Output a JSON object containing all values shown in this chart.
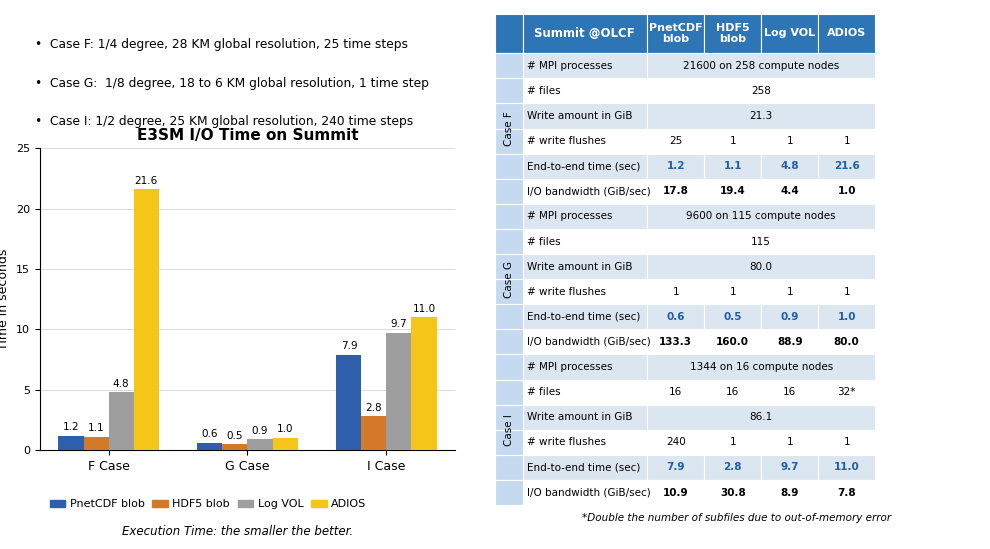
{
  "bullet_points": [
    "Case F: 1/4 degree, 28 KM global resolution, 25 time steps",
    "Case G:  1/8 degree, 18 to 6 KM global resolution, 1 time step",
    "Case I: 1/2 degree, 25 KM global resolution, 240 time steps"
  ],
  "chart_title": "E3SM I/O Time on Summit",
  "chart_ylabel": "Time in seconds",
  "chart_caption": "Execution Time: the smaller the better.",
  "groups": [
    "F Case",
    "G Case",
    "I Case"
  ],
  "series": [
    "PnetCDF blob",
    "HDF5 blob",
    "Log VOL",
    "ADIOS"
  ],
  "colors": [
    "#2E5FAC",
    "#D47928",
    "#9E9E9E",
    "#F5C518"
  ],
  "values": [
    [
      1.2,
      1.1,
      4.8,
      21.6
    ],
    [
      0.6,
      0.5,
      0.9,
      1.0
    ],
    [
      7.9,
      2.8,
      9.7,
      11.0
    ]
  ],
  "ylim": [
    0,
    25
  ],
  "yticks": [
    0,
    5,
    10,
    15,
    20,
    25
  ],
  "bar_width": 0.18,
  "table_header_bg": "#2E75B6",
  "table_case_bg": "#C5D9F1",
  "table_row_bg_odd": "#DCE6F1",
  "table_row_bg_even": "#FFFFFF",
  "table_footnote": "*Double the number of subfiles due to out-of-memory error",
  "table_data": {
    "case_F": {
      "mpi_processes": "21600 on 258 compute nodes",
      "files": "258",
      "write_amount": "21.3",
      "write_flushes": [
        "25",
        "1",
        "1",
        "1"
      ],
      "end_to_end": [
        "1.2",
        "1.1",
        "4.8",
        "21.6"
      ],
      "io_bandwidth": [
        "17.8",
        "19.4",
        "4.4",
        "1.0"
      ]
    },
    "case_G": {
      "mpi_processes": "9600 on 115 compute nodes",
      "files": "115",
      "write_amount": "80.0",
      "write_flushes": [
        "1",
        "1",
        "1",
        "1"
      ],
      "end_to_end": [
        "0.6",
        "0.5",
        "0.9",
        "1.0"
      ],
      "io_bandwidth": [
        "133.3",
        "160.0",
        "88.9",
        "80.0"
      ]
    },
    "case_I": {
      "mpi_processes": "1344 on 16 compute nodes",
      "files": [
        "16",
        "16",
        "16",
        "32*"
      ],
      "write_amount": "86.1",
      "write_flushes": [
        "240",
        "1",
        "1",
        "1"
      ],
      "end_to_end": [
        "7.9",
        "2.8",
        "9.7",
        "11.0"
      ],
      "io_bandwidth": [
        "10.9",
        "30.8",
        "8.9",
        "7.8"
      ]
    }
  }
}
